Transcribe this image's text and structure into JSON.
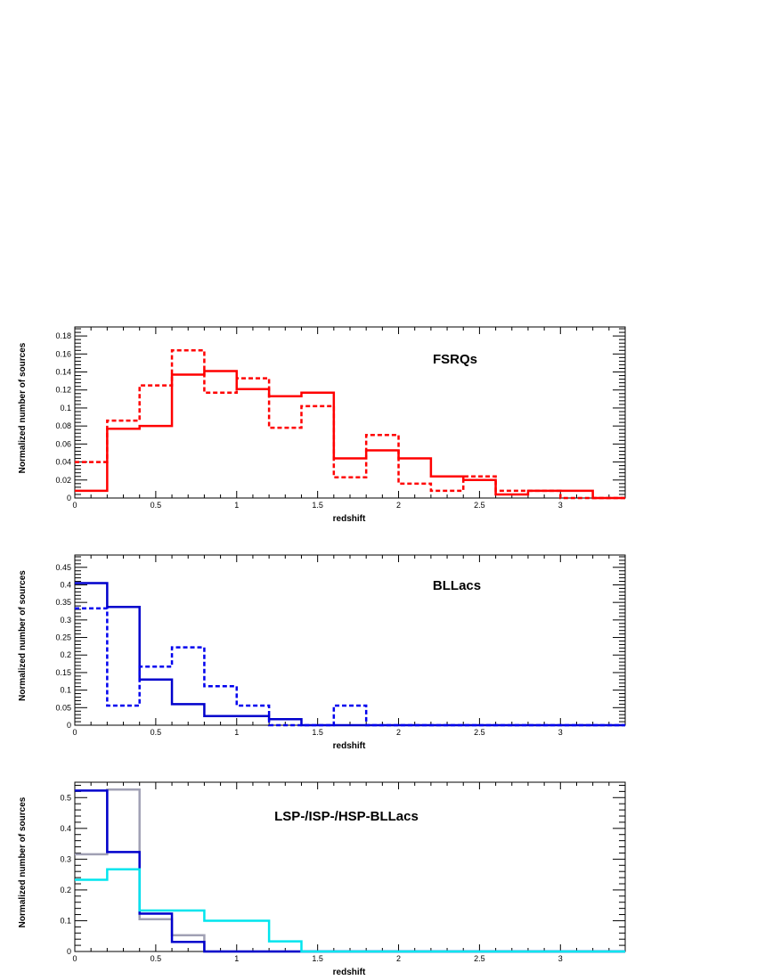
{
  "chart_data": [
    {
      "type": "histogram",
      "title": "FSRQs",
      "xlabel": "redshift",
      "ylabel": "Normalized number of sources",
      "xlim": [
        0,
        3.4
      ],
      "ylim": [
        0,
        0.19
      ],
      "xticks": [
        0,
        0.5,
        1,
        1.5,
        2,
        2.5,
        3
      ],
      "xtick_labels": [
        "0",
        "0.5",
        "1",
        "1.5",
        "2",
        "2.5",
        "3"
      ],
      "yticks": [
        0,
        0.02,
        0.04,
        0.06,
        0.08,
        0.1,
        0.12,
        0.14,
        0.16,
        0.18
      ],
      "ytick_labels": [
        "0",
        "0.02",
        "0.04",
        "0.06",
        "0.08",
        "0.1",
        "0.12",
        "0.14",
        "0.16",
        "0.18"
      ],
      "bin_edges": [
        0,
        0.2,
        0.4,
        0.6,
        0.8,
        1.0,
        1.2,
        1.4,
        1.6,
        1.8,
        2.0,
        2.2,
        2.4,
        2.6,
        2.8,
        3.0,
        3.2,
        3.4
      ],
      "series": [
        {
          "style": "solid",
          "color": "#ff0000",
          "values": [
            0.008,
            0.077,
            0.08,
            0.137,
            0.141,
            0.121,
            0.113,
            0.117,
            0.044,
            0.053,
            0.044,
            0.024,
            0.02,
            0.004,
            0.008,
            0.008,
            0
          ]
        },
        {
          "style": "dashed",
          "color": "#ff0000",
          "values": [
            0.04,
            0.086,
            0.125,
            0.164,
            0.117,
            0.133,
            0.078,
            0.102,
            0.023,
            0.07,
            0.016,
            0.008,
            0.024,
            0.008,
            0.008,
            0,
            0
          ]
        }
      ]
    },
    {
      "type": "histogram",
      "title": "BLLacs",
      "xlabel": "redshift",
      "ylabel": "Normalized number of sources",
      "xlim": [
        0,
        3.4
      ],
      "ylim": [
        0,
        0.485
      ],
      "xticks": [
        0,
        0.5,
        1,
        1.5,
        2,
        2.5,
        3
      ],
      "xtick_labels": [
        "0",
        "0.5",
        "1",
        "1.5",
        "2",
        "2.5",
        "3"
      ],
      "yticks": [
        0,
        0.05,
        0.1,
        0.15,
        0.2,
        0.25,
        0.3,
        0.35,
        0.4,
        0.45
      ],
      "ytick_labels": [
        "0",
        "0.05",
        "0.1",
        "0.15",
        "0.2",
        "0.25",
        "0.3",
        "0.35",
        "0.4",
        "0.45"
      ],
      "bin_edges": [
        0,
        0.2,
        0.4,
        0.6,
        0.8,
        1.0,
        1.2,
        1.4,
        1.6,
        1.8,
        2.0,
        2.2,
        2.4,
        2.6,
        2.8,
        3.0,
        3.2,
        3.4
      ],
      "series": [
        {
          "style": "solid",
          "color": "#0000cc",
          "values": [
            0.405,
            0.337,
            0.13,
            0.06,
            0.026,
            0.026,
            0.017,
            0,
            0,
            0,
            0,
            0,
            0,
            0,
            0,
            0,
            0
          ]
        },
        {
          "style": "dashed",
          "color": "#0000ee",
          "values": [
            0.333,
            0.056,
            0.167,
            0.222,
            0.111,
            0.056,
            0,
            0,
            0.056,
            0,
            0,
            0,
            0,
            0,
            0,
            0,
            0
          ]
        }
      ]
    },
    {
      "type": "histogram",
      "title": "LSP-/ISP-/HSP-BLLacs",
      "xlabel": "redshift",
      "ylabel": "Normalized number of sources",
      "xlim": [
        0,
        3.4
      ],
      "ylim": [
        0,
        0.55
      ],
      "xticks": [
        0,
        0.5,
        1,
        1.5,
        2,
        2.5,
        3
      ],
      "xtick_labels": [
        "0",
        "0.5",
        "1",
        "1.5",
        "2",
        "2.5",
        "3"
      ],
      "yticks": [
        0,
        0.1,
        0.2,
        0.3,
        0.4,
        0.5
      ],
      "ytick_labels": [
        "0",
        "0.1",
        "0.2",
        "0.3",
        "0.4",
        "0.5"
      ],
      "bin_edges": [
        0,
        0.2,
        0.4,
        0.6,
        0.8,
        1.0,
        1.2,
        1.4,
        1.6,
        1.8,
        2.0,
        2.2,
        2.4,
        2.6,
        2.8,
        3.0,
        3.2,
        3.4
      ],
      "series": [
        {
          "style": "solid",
          "color": "#a0a0b4",
          "values": [
            0.316,
            0.526,
            0.105,
            0.053,
            0,
            0,
            0,
            0,
            0,
            0,
            0,
            0,
            0,
            0,
            0,
            0,
            0
          ]
        },
        {
          "style": "solid",
          "color": "#0000cc",
          "values": [
            0.523,
            0.323,
            0.123,
            0.031,
            0,
            0,
            0,
            0,
            0,
            0,
            0,
            0,
            0,
            0,
            0,
            0,
            0
          ]
        },
        {
          "style": "solid",
          "color": "#00e5ee",
          "values": [
            0.233,
            0.267,
            0.133,
            0.133,
            0.1,
            0.1,
            0.033,
            0,
            0,
            0,
            0,
            0,
            0,
            0,
            0,
            0,
            0
          ]
        }
      ]
    }
  ]
}
